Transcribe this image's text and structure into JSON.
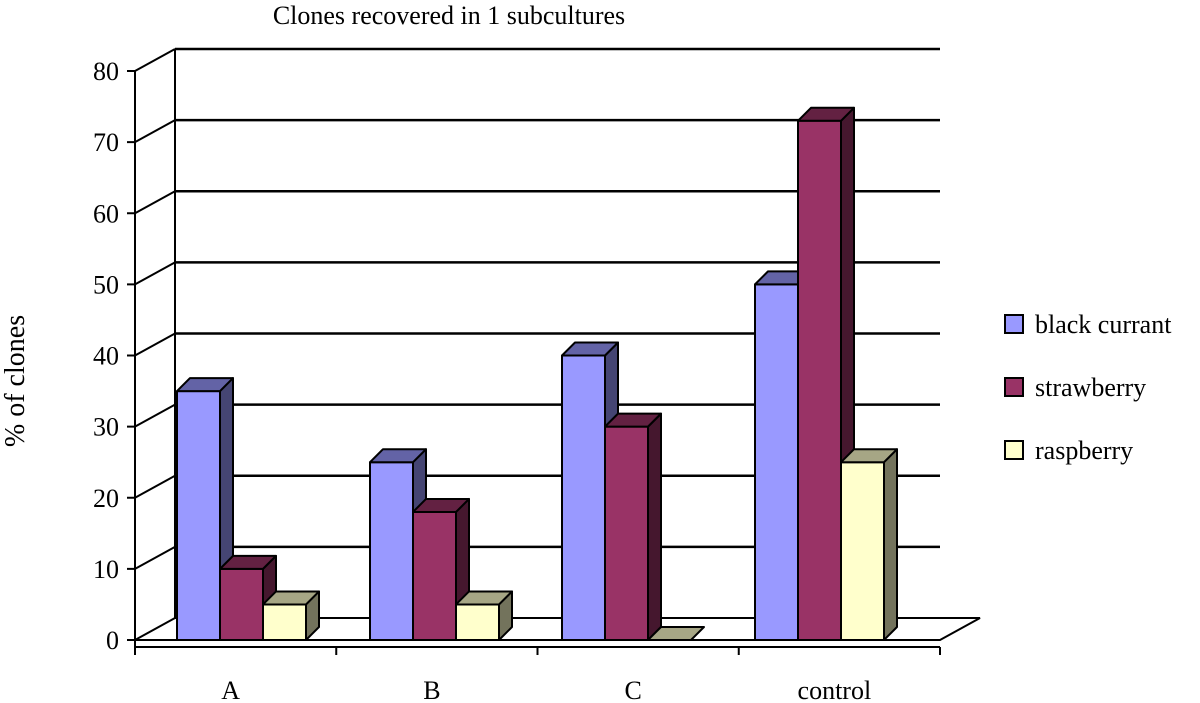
{
  "chart_data": {
    "type": "bar",
    "title": "Clones recovered in 1 subcultures",
    "xlabel": "",
    "ylabel": "% of clones",
    "ylim": [
      0,
      80
    ],
    "yticks": [
      0,
      10,
      20,
      30,
      40,
      50,
      60,
      70,
      80
    ],
    "categories": [
      "A",
      "B",
      "C",
      "control"
    ],
    "series": [
      {
        "name": "black currant",
        "values": [
          35,
          25,
          40,
          50
        ],
        "color": "#9999ff"
      },
      {
        "name": "strawberry",
        "values": [
          10,
          18,
          30,
          73
        ],
        "color": "#993366"
      },
      {
        "name": "raspberry",
        "values": [
          5,
          5,
          0,
          25
        ],
        "color": "#ffffcc"
      }
    ],
    "grid": true,
    "legend": "right",
    "three_d": true
  }
}
